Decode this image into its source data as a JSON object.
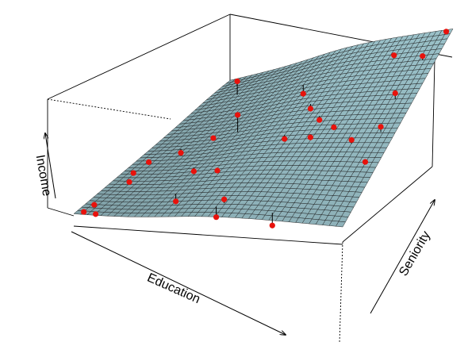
{
  "chart_data": {
    "type": "surface3d",
    "title": "",
    "axes": {
      "x": {
        "label": "Education"
      },
      "y": {
        "label": "Seniority"
      },
      "z": {
        "label": "Income"
      }
    },
    "surface": {
      "color": "#9cc3cb",
      "grid_lines": 40
    },
    "points": {
      "color": "#e8120c",
      "values": [
        {
          "x": 0.52,
          "y": 0.08,
          "z": 0.58
        },
        {
          "x": 0.39,
          "y": 0.28,
          "z": 0.45
        },
        {
          "x": 0.32,
          "y": 0.55,
          "z": 0.97
        },
        {
          "x": 0.14,
          "y": 0.84,
          "z": 0.82
        },
        {
          "x": 0.13,
          "y": 0.48,
          "z": 0.06
        },
        {
          "x": 0.22,
          "y": 0.55,
          "z": 0.22
        },
        {
          "x": 0.27,
          "y": 0.33,
          "z": 0.15
        },
        {
          "x": 0.07,
          "y": 0.24,
          "z": 0.14
        },
        {
          "x": 0.05,
          "y": 0.3,
          "z": 0.17
        },
        {
          "x": 0.05,
          "y": 0.4,
          "z": 0.1
        },
        {
          "x": 0.03,
          "y": 0.08,
          "z": 0.05
        },
        {
          "x": 0.02,
          "y": 0.03,
          "z": 0.02
        },
        {
          "x": 0.07,
          "y": 0.02,
          "z": 0.03
        },
        {
          "x": 0.3,
          "y": 0.15,
          "z": 0.02
        },
        {
          "x": 0.5,
          "y": 0.06,
          "z": 0.08
        },
        {
          "x": 0.72,
          "y": 0.04,
          "z": 0.08
        },
        {
          "x": 0.45,
          "y": 0.8,
          "z": 0.38
        },
        {
          "x": 0.56,
          "y": 0.66,
          "z": 0.55
        },
        {
          "x": 0.64,
          "y": 0.58,
          "z": 0.58
        },
        {
          "x": 0.55,
          "y": 0.48,
          "z": 0.5
        },
        {
          "x": 0.66,
          "y": 0.47,
          "z": 0.6
        },
        {
          "x": 0.73,
          "y": 0.52,
          "z": 0.65
        },
        {
          "x": 0.85,
          "y": 0.42,
          "z": 0.8
        },
        {
          "x": 0.95,
          "y": 0.32,
          "z": 0.68
        },
        {
          "x": 0.94,
          "y": 0.48,
          "z": 0.88
        },
        {
          "x": 0.92,
          "y": 0.65,
          "z": 0.98
        },
        {
          "x": 0.8,
          "y": 0.88,
          "z": 0.96
        },
        {
          "x": 0.94,
          "y": 0.85,
          "z": 1.0
        },
        {
          "x": 0.98,
          "y": 0.98,
          "z": 0.99
        }
      ]
    }
  }
}
